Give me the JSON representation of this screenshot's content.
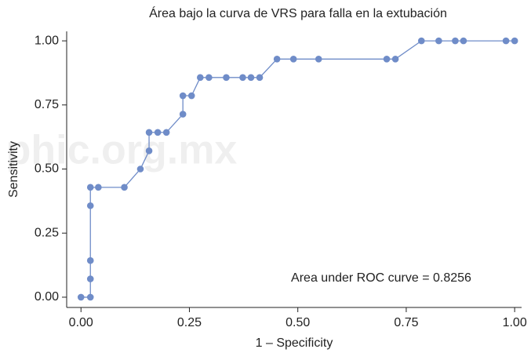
{
  "chart_data": {
    "type": "line",
    "title": "Área bajo la curva de VRS para  falla en la extubación",
    "x_label": "1 – Specificity",
    "y_label": "Sensitivity",
    "annotation": "Area under ROC curve = 0.8256",
    "watermark": "phic.org.mx",
    "xlim": [
      -0.033,
      1.016
    ],
    "ylim": [
      -0.04,
      1.037
    ],
    "xticks": [
      {
        "value": 0,
        "label": "0.00"
      },
      {
        "value": 0.25,
        "label": "0.25"
      },
      {
        "value": 0.5,
        "label": "0.50"
      },
      {
        "value": 0.75,
        "label": "0.75"
      },
      {
        "value": 1,
        "label": "1.00"
      }
    ],
    "yticks": [
      {
        "value": 0,
        "label": "0.00"
      },
      {
        "value": 0.25,
        "label": "0.25"
      },
      {
        "value": 0.5,
        "label": "0.50"
      },
      {
        "value": 0.75,
        "label": "0.75"
      },
      {
        "value": 1,
        "label": "1.00"
      }
    ],
    "grid": false,
    "series": [
      {
        "color": "#6f8cc8",
        "x": [
          0,
          0.0217,
          0.0217,
          0.0217,
          0.0217,
          0.0217,
          0.04,
          0.1,
          0.137,
          0.157,
          0.157,
          0.177,
          0.197,
          0.235,
          0.235,
          0.255,
          0.275,
          0.295,
          0.335,
          0.373,
          0.392,
          0.412,
          0.452,
          0.49,
          0.548,
          0.705,
          0.725,
          0.785,
          0.825,
          0.863,
          0.882,
          0.98,
          1.0
        ],
        "values": [
          0,
          0,
          0.0714,
          0.143,
          0.357,
          0.4286,
          0.4286,
          0.4286,
          0.5,
          0.571,
          0.643,
          0.643,
          0.643,
          0.714,
          0.786,
          0.786,
          0.857,
          0.857,
          0.857,
          0.857,
          0.857,
          0.857,
          0.929,
          0.929,
          0.929,
          0.929,
          0.929,
          1,
          1,
          1,
          1,
          1,
          1
        ]
      }
    ]
  }
}
